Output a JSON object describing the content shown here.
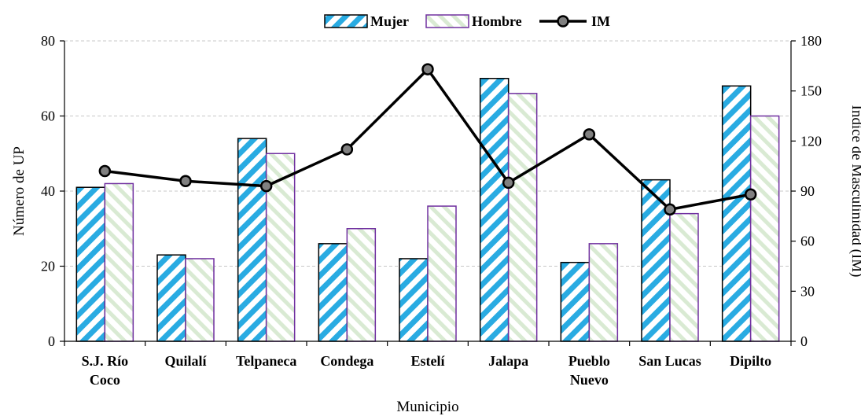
{
  "chart_data": {
    "type": "bar",
    "categories": [
      [
        "S.J. Río",
        "Coco"
      ],
      [
        "Quilalí"
      ],
      [
        "Telpaneca"
      ],
      [
        "Condega"
      ],
      [
        "Estelí"
      ],
      [
        "Jalapa"
      ],
      [
        "Pueblo",
        "Nuevo"
      ],
      [
        "San Lucas"
      ],
      [
        "Dipilto"
      ]
    ],
    "series": [
      {
        "name": "Mujer",
        "type": "bar",
        "axis": "left",
        "values": [
          41,
          23,
          54,
          26,
          22,
          70,
          21,
          43,
          68
        ],
        "color": "#29abe2",
        "outline": "#000000"
      },
      {
        "name": "Hombre",
        "type": "bar",
        "axis": "left",
        "values": [
          42,
          22,
          50,
          30,
          36,
          66,
          26,
          34,
          60
        ],
        "color": "#d9ead3",
        "outline": "#7030a0"
      },
      {
        "name": "IM",
        "type": "line",
        "axis": "right",
        "values": [
          102,
          96,
          93,
          115,
          163,
          95,
          124,
          79,
          88
        ],
        "color": "#000000",
        "marker_fill": "#808080"
      }
    ],
    "xlabel": "Municipio",
    "ylabel": "Número de UP",
    "y2label": "Índice de Masculinidad  (IM)",
    "ylim": [
      0,
      80
    ],
    "yticks": [
      0,
      20,
      40,
      60,
      80
    ],
    "y2lim": [
      0,
      180
    ],
    "y2ticks": [
      0,
      30,
      60,
      90,
      120,
      150,
      180
    ],
    "grid": true,
    "legend": "top-center"
  }
}
